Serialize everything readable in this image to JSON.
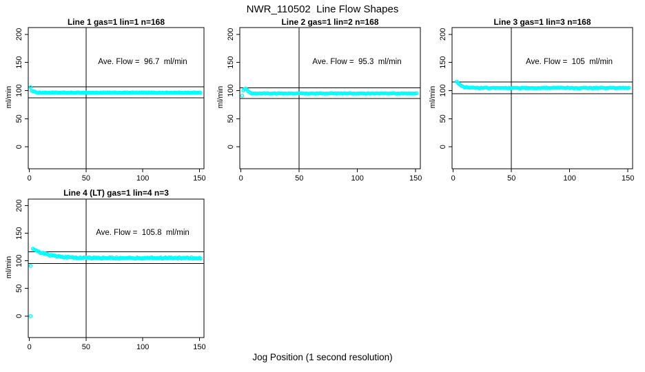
{
  "figure": {
    "title": "NWR_110502  Line Flow Shapes",
    "outer_xlabel": "Jog Position (1 second resolution)"
  },
  "colors": {
    "points": "#00FFFF",
    "axis": "#000000",
    "background": "#FFFFFF"
  },
  "chart_data": [
    {
      "type": "scatter",
      "title": "Line 1 gas=1 lin=1 n=168",
      "ylabel": "ml/min",
      "annotation": "Ave. Flow =  96.7  ml/min",
      "ave_flow": 96.7,
      "ref_lines": {
        "upper": 106.4,
        "lower": 87.0
      },
      "vline_x": 50,
      "xlim": [
        -1,
        154
      ],
      "ylim": [
        -39,
        212
      ],
      "xticks": [
        0,
        50,
        100,
        150
      ],
      "yticks": [
        0,
        50,
        100,
        150,
        200
      ],
      "n_points": 168,
      "series_model": {
        "x_start": 2,
        "x_end": 151,
        "x_step": 1,
        "settle": 96.3,
        "amp": 3.6,
        "tau": 3,
        "noise": 0.55
      },
      "outliers": [
        [
          1,
          106
        ]
      ]
    },
    {
      "type": "scatter",
      "title": "Line 2 gas=1 lin=2 n=168",
      "ylabel": "ml/min",
      "annotation": "Ave. Flow =  95.3  ml/min",
      "ave_flow": 95.3,
      "ref_lines": {
        "upper": 104.8,
        "lower": 85.8
      },
      "vline_x": 50,
      "xlim": [
        -1,
        154
      ],
      "ylim": [
        -39,
        212
      ],
      "xticks": [
        0,
        50,
        100,
        150
      ],
      "yticks": [
        0,
        50,
        100,
        150,
        200
      ],
      "n_points": 168,
      "series_model": {
        "x_start": 2,
        "x_end": 151,
        "x_step": 1,
        "settle": 94.9,
        "amp": 0,
        "tau": 5,
        "noise": 0.55,
        "bump_amp": 8.2,
        "bump_x": 4,
        "bump_w": 7
      },
      "outliers": [
        [
          1,
          91
        ]
      ]
    },
    {
      "type": "scatter",
      "title": "Line 3 gas=1 lin=3 n=168",
      "ylabel": "ml/min",
      "annotation": "Ave. Flow =  105  ml/min",
      "ave_flow": 105,
      "ref_lines": {
        "upper": 115.5,
        "lower": 94.5
      },
      "vline_x": 50,
      "xlim": [
        -1,
        154
      ],
      "ylim": [
        -39,
        212
      ],
      "xticks": [
        0,
        50,
        100,
        150
      ],
      "yticks": [
        0,
        50,
        100,
        150,
        200
      ],
      "n_points": 168,
      "series_model": {
        "x_start": 3,
        "x_end": 151,
        "x_step": 1,
        "settle": 104.7,
        "amp": 11.5,
        "tau": 3.5,
        "noise": 0.7
      },
      "outliers": []
    },
    {
      "type": "scatter",
      "title": "Line 4 (LT) gas=1 lin=4 n=3",
      "ylabel": "ml/min",
      "annotation": "Ave. Flow =  105.8  ml/min",
      "ave_flow": 105.8,
      "ref_lines": {
        "upper": 116.4,
        "lower": 95.2
      },
      "vline_x": 50,
      "xlim": [
        -1,
        154
      ],
      "ylim": [
        -39,
        212
      ],
      "xticks": [
        0,
        50,
        100,
        150
      ],
      "yticks": [
        0,
        50,
        100,
        150,
        200
      ],
      "n_points": 3,
      "series_model": {
        "x_start": 3,
        "x_end": 151,
        "x_step": 1,
        "settle": 105.2,
        "amp": 18,
        "tau": 12,
        "noise": 1.3
      },
      "outliers": [
        [
          1,
          0
        ],
        [
          1,
          91
        ]
      ]
    }
  ]
}
